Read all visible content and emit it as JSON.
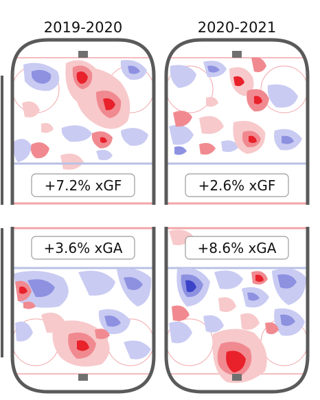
{
  "seasons": [
    "2019-2020",
    "2020-2021"
  ],
  "colors": {
    "positive": "#e8212b",
    "positive_light": "#f7c9cb",
    "negative": "#3b43c8",
    "negative_light": "#c9cbf2",
    "rink_border": "#5a5a5a",
    "red_line": "#f2a4a8",
    "blue_line": "#b8c0e6"
  },
  "chart_data": [
    {
      "type": "heatmap",
      "season": "2019-2020",
      "panel": "offense",
      "annotation": "+7.2% xGF",
      "value": 7.2,
      "metric": "xGF"
    },
    {
      "type": "heatmap",
      "season": "2020-2021",
      "panel": "offense",
      "annotation": "+2.6% xGF",
      "value": 2.6,
      "metric": "xGF"
    },
    {
      "type": "heatmap",
      "season": "2019-2020",
      "panel": "defense",
      "annotation": "+3.6% xGA",
      "value": 3.6,
      "metric": "xGA"
    },
    {
      "type": "heatmap",
      "season": "2020-2021",
      "panel": "defense",
      "annotation": "+8.6% xGA",
      "value": 8.6,
      "metric": "xGA"
    }
  ]
}
